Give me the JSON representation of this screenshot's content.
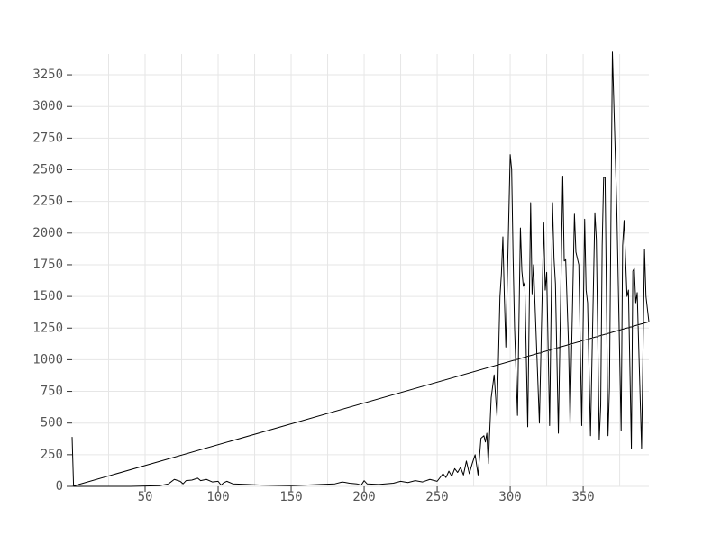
{
  "chart_data": {
    "type": "line",
    "color": "#000000",
    "grid": true,
    "xlim": [
      0,
      395
    ],
    "ylim": [
      0,
      3414
    ],
    "xticks": [
      50,
      100,
      150,
      200,
      250,
      300,
      350
    ],
    "xminorticks": [
      25,
      75,
      125,
      175,
      225,
      275,
      325,
      375
    ],
    "yticks": [
      0,
      250,
      500,
      750,
      1000,
      1250,
      1500,
      1750,
      2000,
      2250,
      2500,
      2750,
      3000,
      3250
    ],
    "x": [
      0,
      1,
      40,
      60,
      66,
      70,
      74,
      76,
      78,
      82,
      86,
      88,
      92,
      96,
      100,
      102,
      104,
      106,
      110,
      120,
      130,
      150,
      160,
      170,
      180,
      185,
      190,
      195,
      198,
      200,
      202,
      210,
      220,
      225,
      230,
      235,
      240,
      245,
      250,
      254,
      256,
      258,
      260,
      262,
      264,
      266,
      268,
      270,
      272,
      274,
      276,
      278,
      280,
      282,
      283,
      284,
      285,
      287,
      289,
      291,
      293,
      294,
      295,
      296,
      297,
      300,
      301,
      302,
      303,
      305,
      307,
      308,
      309,
      310,
      312,
      314,
      315,
      316,
      320,
      323,
      324,
      325,
      327,
      329,
      330,
      331,
      333,
      336,
      337,
      338,
      340,
      341,
      344,
      345,
      347,
      349,
      351,
      352,
      353,
      355,
      358,
      359,
      361,
      362,
      363,
      364,
      365,
      367,
      368,
      370,
      373,
      376,
      377,
      378,
      379,
      380,
      381,
      383,
      384,
      385,
      386,
      387,
      390,
      392,
      393,
      395,
      0
    ],
    "values": [
      390,
      0,
      0,
      5,
      20,
      55,
      40,
      20,
      45,
      50,
      65,
      45,
      55,
      35,
      40,
      10,
      30,
      40,
      20,
      15,
      10,
      5,
      10,
      15,
      20,
      35,
      25,
      20,
      10,
      45,
      20,
      15,
      25,
      40,
      30,
      45,
      35,
      55,
      40,
      100,
      70,
      120,
      80,
      140,
      110,
      150,
      90,
      200,
      100,
      180,
      250,
      90,
      380,
      400,
      350,
      420,
      180,
      700,
      880,
      550,
      1500,
      1680,
      1970,
      1500,
      1100,
      2620,
      2500,
      1800,
      1250,
      560,
      2040,
      1700,
      1580,
      1610,
      470,
      2240,
      1520,
      1750,
      500,
      2080,
      1550,
      1690,
      480,
      2240,
      1800,
      1600,
      420,
      2450,
      1780,
      1790,
      1100,
      490,
      2150,
      1850,
      1750,
      480,
      2110,
      1550,
      1450,
      400,
      2160,
      1950,
      370,
      640,
      1900,
      2440,
      2440,
      400,
      780,
      3430,
      2200,
      440,
      1900,
      2100,
      1800,
      1500,
      1550,
      300,
      1700,
      1720,
      1450,
      1530,
      300,
      1870,
      1500,
      1300,
      0
    ]
  }
}
